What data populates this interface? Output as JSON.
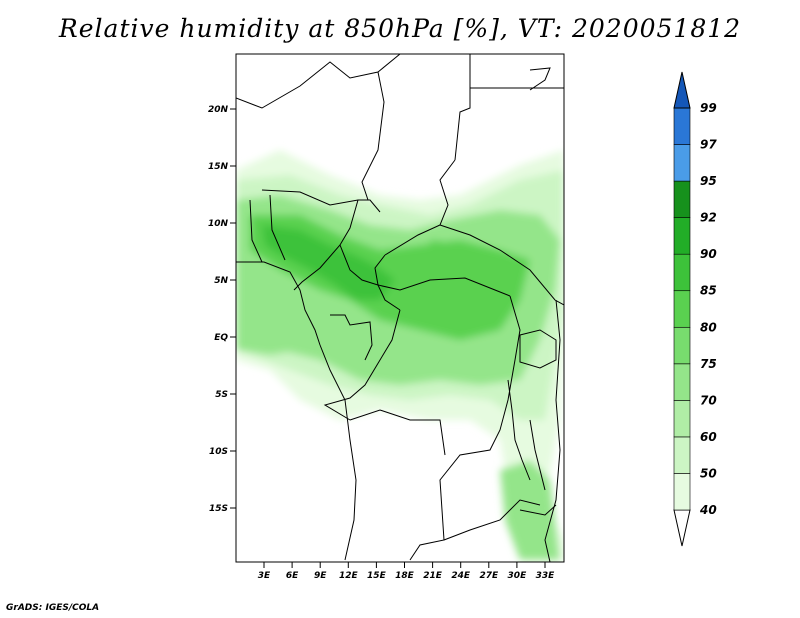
{
  "title": "Relative humidity at 850hPa [%], VT: 2020051812",
  "footer": "GrADS: IGES/COLA",
  "map": {
    "lon_range": [
      0,
      35
    ],
    "lat_range": [
      -20,
      25
    ],
    "lat_ticks": [
      "20N",
      "15N",
      "10N",
      "5N",
      "EQ",
      "5S",
      "10S",
      "15S"
    ],
    "lon_ticks": [
      "3E",
      "6E",
      "9E",
      "12E",
      "15E",
      "18E",
      "21E",
      "24E",
      "27E",
      "30E",
      "33E"
    ]
  },
  "colorbar": {
    "levels": [
      "40",
      "50",
      "60",
      "70",
      "75",
      "80",
      "85",
      "90",
      "92",
      "95",
      "97",
      "99"
    ],
    "colors": [
      "#ffffff",
      "#e6fbe0",
      "#ccf5c4",
      "#b0eda6",
      "#94e58a",
      "#78dc6e",
      "#5ad150",
      "#3dc23a",
      "#22ad27",
      "#16911c",
      "#4a9ce8",
      "#2a77d6",
      "#1457b8"
    ]
  }
}
